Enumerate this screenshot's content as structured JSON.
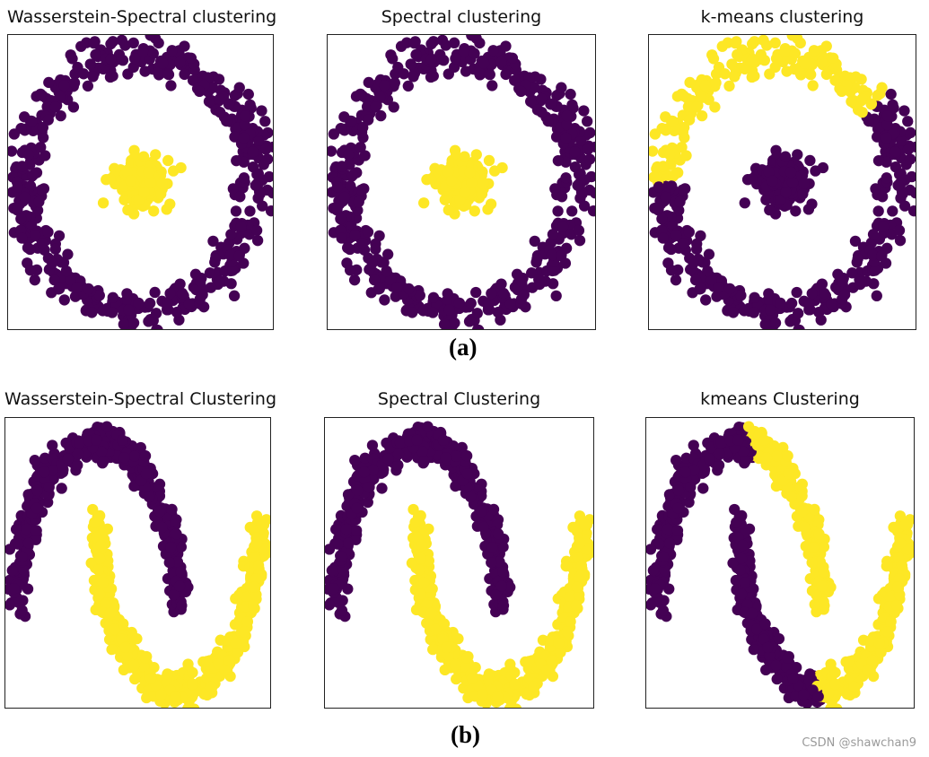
{
  "colors": {
    "purple": "#440154",
    "yellow": "#fde725"
  },
  "captions": {
    "a": "(a)",
    "b": "(b)"
  },
  "watermark": "CSDN @shawchan9",
  "chart_data": [
    {
      "type": "scatter",
      "dataset": "circles",
      "title": "Wasserstein-Spectral clustering",
      "labeling": "radial",
      "xlim": [
        -1.15,
        1.15
      ],
      "ylim": [
        -1.15,
        1.15
      ],
      "legend": "none"
    },
    {
      "type": "scatter",
      "dataset": "circles",
      "title": "Spectral clustering",
      "labeling": "radial",
      "xlim": [
        -1.15,
        1.15
      ],
      "ylim": [
        -1.15,
        1.15
      ],
      "legend": "none"
    },
    {
      "type": "scatter",
      "dataset": "circles",
      "title": "k-means clustering",
      "labeling": "kmeans-circles",
      "xlim": [
        -1.15,
        1.15
      ],
      "ylim": [
        -1.15,
        1.15
      ],
      "legend": "none"
    },
    {
      "type": "scatter",
      "dataset": "moons",
      "title": "Wasserstein-Spectral Clustering",
      "labeling": "moon",
      "xlim": [
        -1.15,
        2.15
      ],
      "ylim": [
        -0.62,
        1.15
      ],
      "legend": "none"
    },
    {
      "type": "scatter",
      "dataset": "moons",
      "title": "Spectral Clustering",
      "labeling": "moon",
      "xlim": [
        -1.15,
        2.15
      ],
      "ylim": [
        -0.62,
        1.15
      ],
      "legend": "none"
    },
    {
      "type": "scatter",
      "dataset": "moons",
      "title": "kmeans Clustering",
      "labeling": "kmeans-moons",
      "xlim": [
        -1.15,
        2.15
      ],
      "ylim": [
        -0.62,
        1.15
      ],
      "legend": "none"
    }
  ]
}
